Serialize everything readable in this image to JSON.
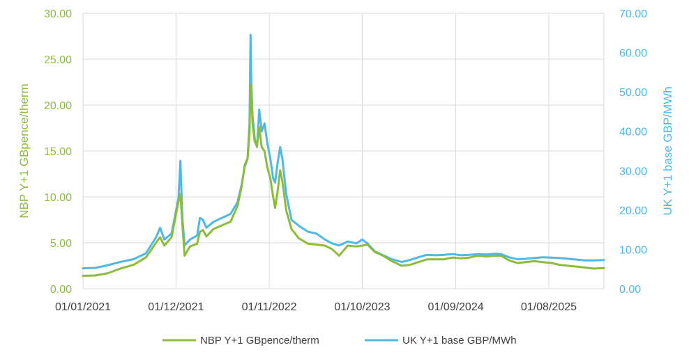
{
  "chart_data": {
    "type": "line",
    "title": "",
    "xlabel": "",
    "ylabel_left": "NBP Y+1 GBpence/therm",
    "ylabel_right": "UK Y+1 base GBP/MWh",
    "ylim_left": [
      0,
      30
    ],
    "ylim_right": [
      0,
      70
    ],
    "xlim": [
      "2021-01-01",
      "2026-02-15"
    ],
    "grid": true,
    "legend_position": "bottom",
    "x_ticks": [
      "01/01/2021",
      "01/12/2021",
      "01/11/2022",
      "01/10/2023",
      "01/09/2024",
      "01/08/2025"
    ],
    "y_ticks_left": [
      "0.00",
      "5.00",
      "10.00",
      "15.00",
      "20.00",
      "25.00",
      "30.00"
    ],
    "y_ticks_right": [
      "0.00",
      "10.00",
      "20.00",
      "30.00",
      "40.00",
      "50.00",
      "60.00",
      "70.00"
    ],
    "series": [
      {
        "name": "NBP Y+1 GBpence/therm",
        "axis": "left",
        "color": "#8cbc3c",
        "points": [
          [
            "2021-01-01",
            1.4
          ],
          [
            "2021-02-15",
            1.45
          ],
          [
            "2021-04-01",
            1.7
          ],
          [
            "2021-05-15",
            2.2
          ],
          [
            "2021-07-01",
            2.6
          ],
          [
            "2021-08-15",
            3.4
          ],
          [
            "2021-09-20",
            5.0
          ],
          [
            "2021-10-05",
            5.6
          ],
          [
            "2021-10-20",
            4.7
          ],
          [
            "2021-11-15",
            5.6
          ],
          [
            "2021-12-10",
            9.5
          ],
          [
            "2021-12-17",
            10.3
          ],
          [
            "2021-12-24",
            7.0
          ],
          [
            "2022-01-01",
            3.6
          ],
          [
            "2022-01-20",
            4.6
          ],
          [
            "2022-02-15",
            4.9
          ],
          [
            "2022-02-25",
            6.2
          ],
          [
            "2022-03-08",
            6.4
          ],
          [
            "2022-03-20",
            5.7
          ],
          [
            "2022-04-15",
            6.5
          ],
          [
            "2022-05-15",
            6.9
          ],
          [
            "2022-06-15",
            7.3
          ],
          [
            "2022-07-10",
            9.0
          ],
          [
            "2022-07-25",
            11.2
          ],
          [
            "2022-08-05",
            13.5
          ],
          [
            "2022-08-15",
            14.2
          ],
          [
            "2022-08-22",
            17.0
          ],
          [
            "2022-08-26",
            22.2
          ],
          [
            "2022-08-29",
            21.5
          ],
          [
            "2022-09-02",
            18.0
          ],
          [
            "2022-09-10",
            16.0
          ],
          [
            "2022-09-18",
            15.5
          ],
          [
            "2022-09-26",
            17.6
          ],
          [
            "2022-10-05",
            15.4
          ],
          [
            "2022-10-15",
            15.0
          ],
          [
            "2022-10-25",
            13.2
          ],
          [
            "2022-11-05",
            12.0
          ],
          [
            "2022-11-15",
            10.0
          ],
          [
            "2022-11-22",
            8.8
          ],
          [
            "2022-12-01",
            10.6
          ],
          [
            "2022-12-10",
            12.9
          ],
          [
            "2022-12-18",
            11.7
          ],
          [
            "2023-01-01",
            8.5
          ],
          [
            "2023-01-20",
            6.5
          ],
          [
            "2023-02-15",
            5.5
          ],
          [
            "2023-03-20",
            4.9
          ],
          [
            "2023-04-20",
            4.8
          ],
          [
            "2023-05-20",
            4.7
          ],
          [
            "2023-06-15",
            4.3
          ],
          [
            "2023-07-10",
            3.6
          ],
          [
            "2023-08-10",
            4.7
          ],
          [
            "2023-09-10",
            4.6
          ],
          [
            "2023-10-01",
            4.7
          ],
          [
            "2023-10-20",
            4.8
          ],
          [
            "2023-11-15",
            4.0
          ],
          [
            "2023-12-15",
            3.6
          ],
          [
            "2024-01-15",
            3.0
          ],
          [
            "2024-02-20",
            2.5
          ],
          [
            "2024-03-20",
            2.6
          ],
          [
            "2024-04-20",
            2.9
          ],
          [
            "2024-05-20",
            3.2
          ],
          [
            "2024-06-20",
            3.2
          ],
          [
            "2024-07-20",
            3.2
          ],
          [
            "2024-08-20",
            3.4
          ],
          [
            "2024-09-20",
            3.3
          ],
          [
            "2024-10-20",
            3.4
          ],
          [
            "2024-11-20",
            3.6
          ],
          [
            "2024-12-20",
            3.5
          ],
          [
            "2025-01-20",
            3.6
          ],
          [
            "2025-02-10",
            3.6
          ],
          [
            "2025-03-10",
            3.1
          ],
          [
            "2025-04-10",
            2.8
          ],
          [
            "2025-05-10",
            2.9
          ],
          [
            "2025-06-10",
            3.0
          ],
          [
            "2025-07-10",
            2.9
          ],
          [
            "2025-08-10",
            2.8
          ],
          [
            "2025-09-10",
            2.6
          ],
          [
            "2025-10-10",
            2.5
          ],
          [
            "2025-11-10",
            2.4
          ],
          [
            "2025-12-10",
            2.3
          ],
          [
            "2026-01-10",
            2.2
          ],
          [
            "2026-02-15",
            2.25
          ]
        ]
      },
      {
        "name": "UK Y+1 base GBP/MWh",
        "axis": "right",
        "color": "#4fb8e6",
        "points": [
          [
            "2021-01-01",
            5.2
          ],
          [
            "2021-02-15",
            5.3
          ],
          [
            "2021-04-01",
            6.0
          ],
          [
            "2021-05-15",
            6.8
          ],
          [
            "2021-07-01",
            7.5
          ],
          [
            "2021-08-15",
            9.0
          ],
          [
            "2021-09-20",
            13.0
          ],
          [
            "2021-10-05",
            15.5
          ],
          [
            "2021-10-20",
            12.5
          ],
          [
            "2021-11-15",
            14.0
          ],
          [
            "2021-12-10",
            23.0
          ],
          [
            "2021-12-17",
            32.5
          ],
          [
            "2021-12-24",
            18.0
          ],
          [
            "2022-01-01",
            11.0
          ],
          [
            "2022-01-20",
            12.5
          ],
          [
            "2022-02-15",
            13.5
          ],
          [
            "2022-02-25",
            18.0
          ],
          [
            "2022-03-08",
            17.5
          ],
          [
            "2022-03-20",
            15.5
          ],
          [
            "2022-04-15",
            17.0
          ],
          [
            "2022-05-15",
            18.0
          ],
          [
            "2022-06-15",
            19.0
          ],
          [
            "2022-07-10",
            22.0
          ],
          [
            "2022-07-25",
            26.5
          ],
          [
            "2022-08-05",
            31.0
          ],
          [
            "2022-08-15",
            33.0
          ],
          [
            "2022-08-22",
            42.0
          ],
          [
            "2022-08-26",
            64.5
          ],
          [
            "2022-08-29",
            52.0
          ],
          [
            "2022-09-02",
            44.0
          ],
          [
            "2022-09-10",
            38.0
          ],
          [
            "2022-09-18",
            36.0
          ],
          [
            "2022-09-26",
            45.5
          ],
          [
            "2022-10-05",
            40.0
          ],
          [
            "2022-10-15",
            42.0
          ],
          [
            "2022-10-25",
            37.0
          ],
          [
            "2022-11-05",
            33.0
          ],
          [
            "2022-11-15",
            28.0
          ],
          [
            "2022-11-22",
            27.0
          ],
          [
            "2022-12-01",
            32.0
          ],
          [
            "2022-12-10",
            36.0
          ],
          [
            "2022-12-18",
            33.0
          ],
          [
            "2023-01-01",
            24.0
          ],
          [
            "2023-01-20",
            17.5
          ],
          [
            "2023-02-15",
            16.0
          ],
          [
            "2023-03-20",
            14.5
          ],
          [
            "2023-04-20",
            14.0
          ],
          [
            "2023-05-20",
            12.5
          ],
          [
            "2023-06-15",
            11.5
          ],
          [
            "2023-07-10",
            11.0
          ],
          [
            "2023-08-10",
            12.0
          ],
          [
            "2023-09-10",
            11.5
          ],
          [
            "2023-10-01",
            12.5
          ],
          [
            "2023-10-20",
            11.5
          ],
          [
            "2023-11-15",
            9.5
          ],
          [
            "2023-12-15",
            8.5
          ],
          [
            "2024-01-15",
            7.5
          ],
          [
            "2024-02-20",
            6.8
          ],
          [
            "2024-03-20",
            7.3
          ],
          [
            "2024-04-20",
            8.0
          ],
          [
            "2024-05-20",
            8.6
          ],
          [
            "2024-06-20",
            8.5
          ],
          [
            "2024-07-20",
            8.6
          ],
          [
            "2024-08-20",
            8.8
          ],
          [
            "2024-09-20",
            8.5
          ],
          [
            "2024-10-20",
            8.6
          ],
          [
            "2024-11-20",
            8.8
          ],
          [
            "2024-12-20",
            8.7
          ],
          [
            "2025-01-20",
            8.9
          ],
          [
            "2025-02-10",
            8.8
          ],
          [
            "2025-03-10",
            8.0
          ],
          [
            "2025-04-10",
            7.5
          ],
          [
            "2025-05-10",
            7.6
          ],
          [
            "2025-06-10",
            7.8
          ],
          [
            "2025-07-10",
            8.0
          ],
          [
            "2025-08-10",
            7.9
          ],
          [
            "2025-09-10",
            7.8
          ],
          [
            "2025-10-10",
            7.6
          ],
          [
            "2025-11-10",
            7.4
          ],
          [
            "2025-12-10",
            7.2
          ],
          [
            "2026-01-10",
            7.2
          ],
          [
            "2026-02-15",
            7.3
          ]
        ]
      }
    ]
  }
}
